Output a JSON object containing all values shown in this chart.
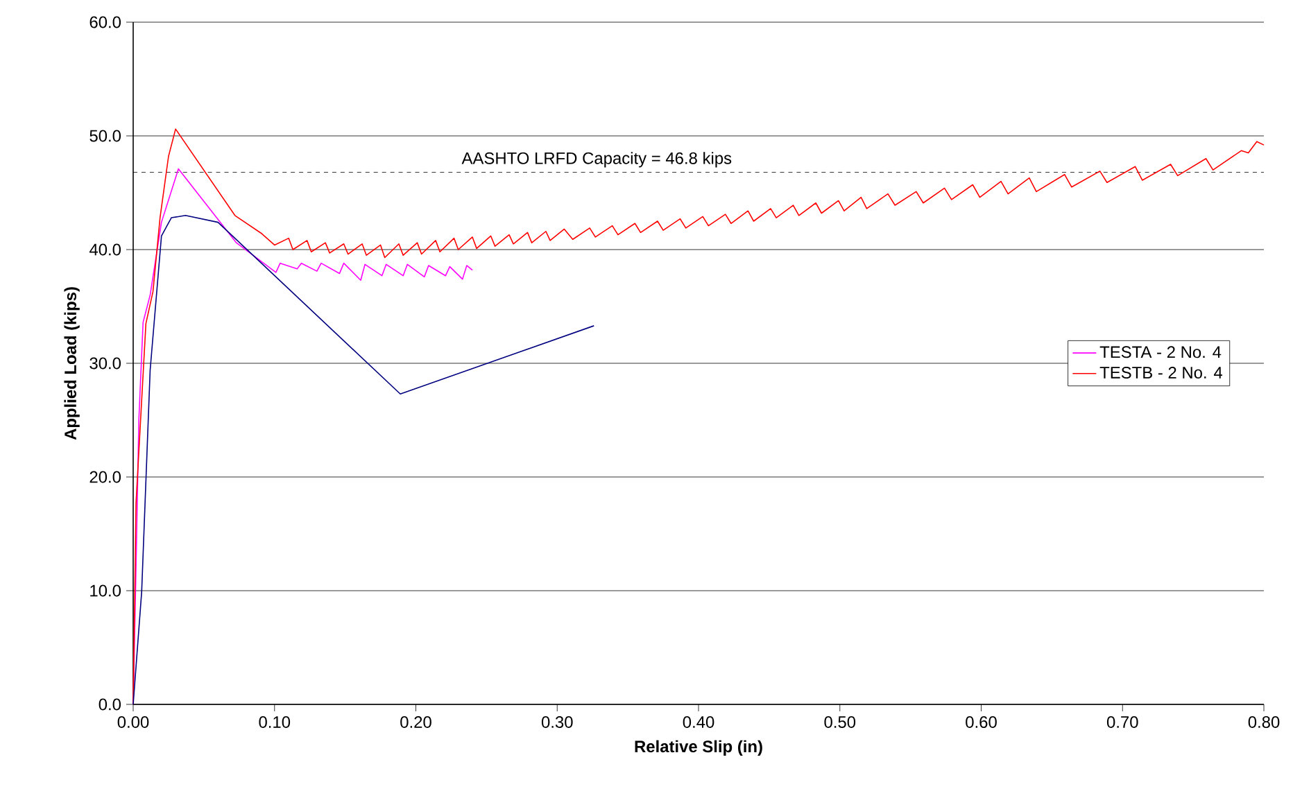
{
  "chart_data": {
    "type": "line",
    "xlabel": "Relative Slip (in)",
    "ylabel": "Applied Load (kips)",
    "xlim": [
      0,
      0.8
    ],
    "ylim": [
      0,
      60
    ],
    "xticks": [
      {
        "value": 0,
        "label": "0.00"
      },
      {
        "value": 0.1,
        "label": "0.10"
      },
      {
        "value": 0.2,
        "label": "0.20"
      },
      {
        "value": 0.3,
        "label": "0.30"
      },
      {
        "value": 0.4,
        "label": "0.40"
      },
      {
        "value": 0.5,
        "label": "0.50"
      },
      {
        "value": 0.6,
        "label": "0.60"
      },
      {
        "value": 0.7,
        "label": "0.70"
      },
      {
        "value": 0.8,
        "label": "0.80"
      }
    ],
    "yticks": [
      {
        "value": 0,
        "label": "0.0"
      },
      {
        "value": 10,
        "label": "10.0"
      },
      {
        "value": 20,
        "label": "20.0"
      },
      {
        "value": 30,
        "label": "30.0"
      },
      {
        "value": 40,
        "label": "40.0"
      },
      {
        "value": 50,
        "label": "50.0"
      },
      {
        "value": 60,
        "label": "60.0"
      }
    ],
    "grid": "y",
    "legend": "right",
    "marker": "none",
    "line_style": "solid",
    "ref_lines": [
      {
        "axis": "y",
        "value": 46.8,
        "label": "AASHTO LRFD Capacity = 46.8 kips",
        "color": "#000000",
        "line_style": "dashed"
      }
    ],
    "series": [
      {
        "name": "TESTA - 2 No. 4",
        "color": "#ff00ff",
        "x": [
          0,
          0.002,
          0.004,
          0.007,
          0.012,
          0.02,
          0.032,
          0.073,
          0.101,
          0.104,
          0.116,
          0.119,
          0.13,
          0.133,
          0.146,
          0.149,
          0.161,
          0.164,
          0.176,
          0.179,
          0.191,
          0.194,
          0.206,
          0.209,
          0.221,
          0.224,
          0.233,
          0.236,
          0.24
        ],
        "values": [
          0,
          12,
          25,
          33.6,
          36,
          42.4,
          47.1,
          40.6,
          38.0,
          38.8,
          38.3,
          38.8,
          38.1,
          38.8,
          37.9,
          38.8,
          37.3,
          38.7,
          37.7,
          38.7,
          37.7,
          38.7,
          37.6,
          38.6,
          37.7,
          38.5,
          37.4,
          38.6,
          38.2
        ]
      },
      {
        "name": "TESTB - 2 No. 4",
        "color": "#ff0000",
        "x": [
          0,
          0.002,
          0.009,
          0.014,
          0.019,
          0.025,
          0.03,
          0.072,
          0.091,
          0.1,
          0.11,
          0.113,
          0.123,
          0.126,
          0.136,
          0.139,
          0.149,
          0.152,
          0.162,
          0.165,
          0.175,
          0.178,
          0.188,
          0.191,
          0.201,
          0.204,
          0.214,
          0.217,
          0.227,
          0.23,
          0.24,
          0.243,
          0.253,
          0.256,
          0.266,
          0.269,
          0.279,
          0.282,
          0.292,
          0.295,
          0.305,
          0.311,
          0.323,
          0.327,
          0.339,
          0.343,
          0.355,
          0.359,
          0.371,
          0.375,
          0.387,
          0.391,
          0.403,
          0.407,
          0.419,
          0.423,
          0.435,
          0.439,
          0.451,
          0.455,
          0.467,
          0.471,
          0.483,
          0.487,
          0.499,
          0.503,
          0.515,
          0.519,
          0.534,
          0.539,
          0.554,
          0.559,
          0.574,
          0.579,
          0.594,
          0.599,
          0.614,
          0.619,
          0.634,
          0.639,
          0.659,
          0.664,
          0.684,
          0.689,
          0.709,
          0.714,
          0.734,
          0.739,
          0.759,
          0.764,
          0.784,
          0.789,
          0.795,
          0.8
        ],
        "values": [
          0,
          17.7,
          33.5,
          36.3,
          42.8,
          48.2,
          50.6,
          43.0,
          41.4,
          40.4,
          41.0,
          40.0,
          40.8,
          39.8,
          40.6,
          39.7,
          40.5,
          39.6,
          40.5,
          39.5,
          40.4,
          39.3,
          40.5,
          39.5,
          40.6,
          39.6,
          40.8,
          39.8,
          41.0,
          40.0,
          41.1,
          40.1,
          41.2,
          40.3,
          41.3,
          40.5,
          41.5,
          40.6,
          41.6,
          40.8,
          41.8,
          40.9,
          41.9,
          41.1,
          42.1,
          41.3,
          42.3,
          41.5,
          42.5,
          41.7,
          42.7,
          41.9,
          42.9,
          42.1,
          43.1,
          42.3,
          43.4,
          42.5,
          43.6,
          42.8,
          43.9,
          43.0,
          44.1,
          43.2,
          44.3,
          43.4,
          44.6,
          43.6,
          44.9,
          43.9,
          45.1,
          44.1,
          45.4,
          44.4,
          45.7,
          44.6,
          46.0,
          44.9,
          46.3,
          45.1,
          46.6,
          45.5,
          46.9,
          45.9,
          47.3,
          46.1,
          47.5,
          46.5,
          48.0,
          47.0,
          48.7,
          48.5,
          49.5,
          49.2
        ]
      },
      {
        "color": "#000080",
        "x": [
          0,
          0.006,
          0.012,
          0.02,
          0.027,
          0.037,
          0.06,
          0.189,
          0.326
        ],
        "values": [
          0,
          9.9,
          29.4,
          41.2,
          42.8,
          43.0,
          42.4,
          27.3,
          33.3
        ]
      }
    ]
  }
}
